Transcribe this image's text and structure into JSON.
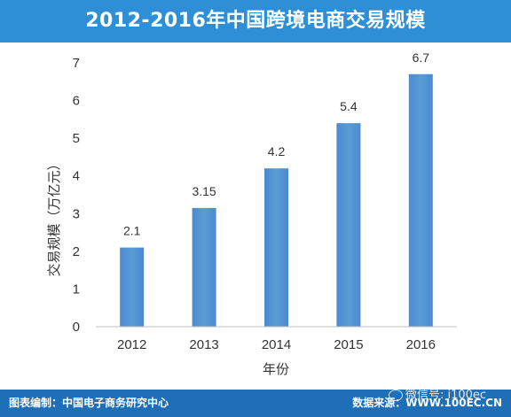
{
  "title": "2012-2016年中国跨境电商交易规模",
  "chart_data": {
    "type": "bar",
    "title": "2012-2016年中国跨境电商交易规模",
    "categories": [
      "2012",
      "2013",
      "2014",
      "2015",
      "2016"
    ],
    "values": [
      2.1,
      3.15,
      4.2,
      5.4,
      6.7
    ],
    "data_labels": [
      "2.1",
      "3.15",
      "4.2",
      "5.4",
      "6.7"
    ],
    "xlabel": "年份",
    "ylabel": "交易规模（万亿元）",
    "ylim": [
      0,
      7
    ],
    "yticks": [
      "0",
      "1",
      "2",
      "3",
      "4",
      "5",
      "6",
      "7"
    ],
    "grid": false,
    "legend": "none",
    "bar_color": "#5b9bd5"
  },
  "footer": {
    "left": "图表编制：中国电子商务研究中心",
    "right": "数据来源：WWW.100EC.CN"
  },
  "watermark": {
    "text": "微信号: i100ec",
    "icon": "wechat-icon"
  },
  "colors": {
    "title_bar": "#2e8fd6",
    "footer_bar": "#1e6fb8",
    "bar": "#5b9bd5"
  }
}
